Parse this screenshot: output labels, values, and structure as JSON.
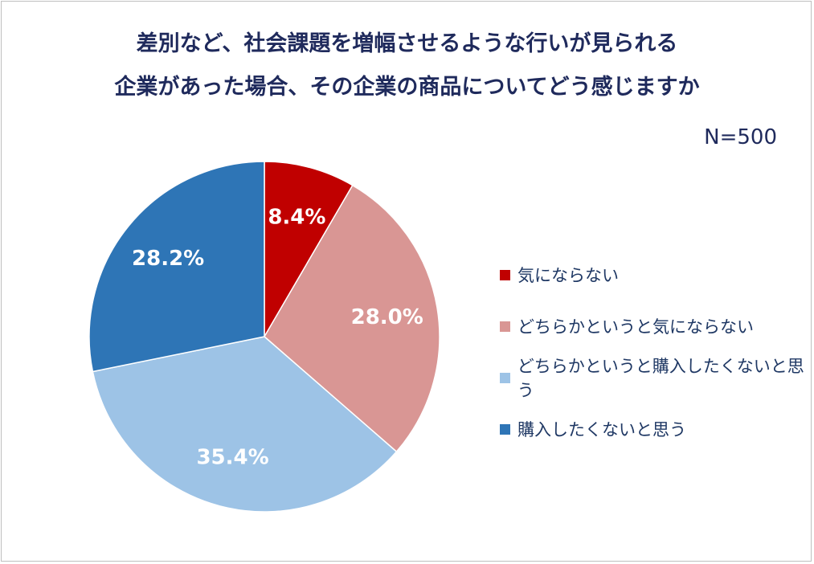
{
  "chart_data": {
    "type": "pie",
    "title": [
      "差別など、社会課題を増幅させるような行いが見られる",
      "企業があった場合、その企業の商品についてどう感じますか"
    ],
    "note": "N=500",
    "legend_position": "right",
    "slices": [
      {
        "label": "気にならない",
        "value": 8.4,
        "display": "8.4%",
        "color": "#c00000"
      },
      {
        "label": "どちらかというと気にならない",
        "value": 28.0,
        "display": "28.0%",
        "color": "#d99694"
      },
      {
        "label": "どちらかというと購入したくないと思う",
        "value": 35.4,
        "display": "35.4%",
        "color": "#9dc3e6"
      },
      {
        "label": "購入したくないと思う",
        "value": 28.2,
        "display": "28.2%",
        "color": "#2e75b6"
      }
    ]
  }
}
